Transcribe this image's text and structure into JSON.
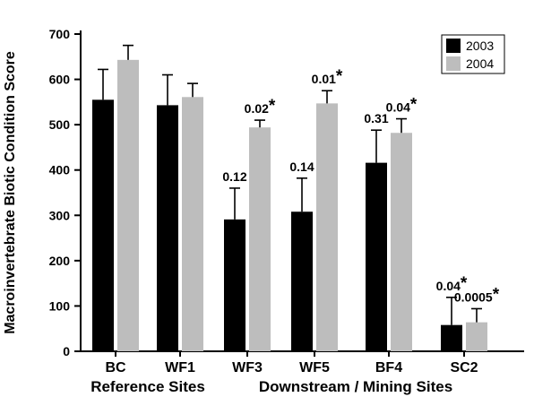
{
  "chart_data": {
    "type": "bar",
    "ylabel": "Macroinvertebrate Biotic Condition Score",
    "ylim": [
      0,
      700
    ],
    "yticks": [
      0,
      100,
      200,
      300,
      400,
      500,
      600,
      700
    ],
    "categories": [
      "BC",
      "WF1",
      "WF3",
      "WF5",
      "BF4",
      "SC2"
    ],
    "groups": [
      {
        "label": "Reference Sites",
        "categories": [
          "BC",
          "WF1"
        ]
      },
      {
        "label": "Downstream / Mining Sites",
        "categories": [
          "WF3",
          "WF5",
          "BF4",
          "SC2"
        ]
      }
    ],
    "series": [
      {
        "name": "2003",
        "color": "#000000",
        "values": [
          555,
          543,
          291,
          308,
          416,
          58
        ],
        "errors": [
          67,
          67,
          69,
          74,
          72,
          61
        ]
      },
      {
        "name": "2004",
        "color": "#bdbdbd",
        "values": [
          643,
          561,
          494,
          547,
          482,
          64
        ],
        "errors": [
          32,
          30,
          16,
          28,
          31,
          30
        ]
      }
    ],
    "annotations": [
      {
        "category": "WF3",
        "series": "2003",
        "text": "0.12",
        "star": false
      },
      {
        "category": "WF3",
        "series": "2004",
        "text": "0.02",
        "star": true
      },
      {
        "category": "WF5",
        "series": "2003",
        "text": "0.14",
        "star": false
      },
      {
        "category": "WF5",
        "series": "2004",
        "text": "0.01",
        "star": true
      },
      {
        "category": "BF4",
        "series": "2003",
        "text": "0.31",
        "star": false
      },
      {
        "category": "BF4",
        "series": "2004",
        "text": "0.04",
        "star": true
      },
      {
        "category": "SC2",
        "series": "2003",
        "text": "0.04",
        "star": true
      },
      {
        "category": "SC2",
        "series": "2004",
        "text": "0.0005",
        "star": true
      }
    ],
    "legend_position": "top-right",
    "grid": false
  }
}
